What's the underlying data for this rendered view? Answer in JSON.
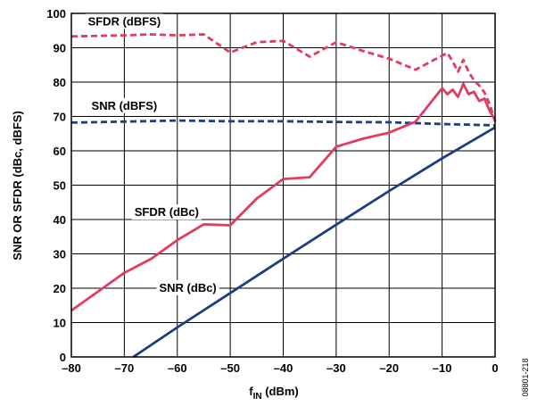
{
  "chart_data": {
    "type": "line",
    "xlabel": "f",
    "xlabel_sub": "IN",
    "xlabel_unit": " (dBm)",
    "ylabel": "SNR OR SFDR (dBc, dBFS)",
    "xlim": [
      -80,
      0
    ],
    "ylim": [
      0,
      100
    ],
    "x_ticks": [
      -80,
      -70,
      -60,
      -50,
      -40,
      -30,
      -20,
      -10,
      0
    ],
    "x_tick_labels": [
      "–80",
      "–70",
      "–60",
      "–50",
      "–40",
      "–30",
      "–20",
      "–10",
      "0"
    ],
    "y_ticks": [
      0,
      10,
      20,
      30,
      40,
      50,
      60,
      70,
      80,
      90,
      100
    ],
    "y_tick_labels": [
      "0",
      "10",
      "20",
      "30",
      "40",
      "50",
      "60",
      "70",
      "80",
      "90",
      "100"
    ],
    "grid": true,
    "figure_id": "08801-218",
    "series": [
      {
        "name": "SFDR (dBFS)",
        "color": "#e03c5f",
        "dash": true,
        "label_at": [
          -70,
          96.5
        ],
        "points": [
          [
            -80,
            93.3
          ],
          [
            -70,
            93.6
          ],
          [
            -65,
            93.9
          ],
          [
            -60,
            93.6
          ],
          [
            -55,
            93.9
          ],
          [
            -50,
            88.6
          ],
          [
            -45,
            91.6
          ],
          [
            -40,
            92.0
          ],
          [
            -35,
            87.4
          ],
          [
            -30,
            91.6
          ],
          [
            -25,
            89.1
          ],
          [
            -20,
            86.8
          ],
          [
            -15,
            83.6
          ],
          [
            -10,
            87.7
          ],
          [
            -9,
            88.5
          ],
          [
            -8,
            86.0
          ],
          [
            -7,
            83.0
          ],
          [
            -6,
            86.5
          ],
          [
            -5,
            83.0
          ],
          [
            -4,
            80.5
          ],
          [
            -3,
            79.0
          ],
          [
            -2,
            77.0
          ],
          [
            -1,
            73.5
          ],
          [
            0,
            68.5
          ]
        ]
      },
      {
        "name": "SNR (dBFS)",
        "color": "#1a3f85",
        "dash": true,
        "label_at": [
          -70,
          72.0
        ],
        "points": [
          [
            -80,
            68.2
          ],
          [
            -70,
            68.5
          ],
          [
            -60,
            68.8
          ],
          [
            -50,
            68.6
          ],
          [
            -40,
            68.6
          ],
          [
            -30,
            68.4
          ],
          [
            -20,
            68.3
          ],
          [
            -10,
            67.8
          ],
          [
            -5,
            67.6
          ],
          [
            0,
            67.4
          ]
        ]
      },
      {
        "name": "SFDR (dBc)",
        "color": "#e03c5f",
        "dash": false,
        "label_at": [
          -62,
          41.0
        ],
        "points": [
          [
            -80,
            13.5
          ],
          [
            -75,
            19.0
          ],
          [
            -70,
            24.5
          ],
          [
            -65,
            28.5
          ],
          [
            -60,
            34.0
          ],
          [
            -55,
            38.6
          ],
          [
            -50,
            38.3
          ],
          [
            -45,
            46.1
          ],
          [
            -40,
            51.8
          ],
          [
            -35,
            52.3
          ],
          [
            -30,
            61.2
          ],
          [
            -25,
            63.5
          ],
          [
            -20,
            65.3
          ],
          [
            -15,
            68.5
          ],
          [
            -10,
            78.2
          ],
          [
            -9,
            76.5
          ],
          [
            -8,
            77.8
          ],
          [
            -7,
            75.7
          ],
          [
            -6,
            79.5
          ],
          [
            -5,
            76.5
          ],
          [
            -4,
            77.2
          ],
          [
            -3,
            74.5
          ],
          [
            -2,
            75.2
          ],
          [
            -1,
            71.5
          ],
          [
            0,
            69.0
          ]
        ]
      },
      {
        "name": "SNR (dBc)",
        "color": "#1a3f85",
        "dash": false,
        "label_at": [
          -58,
          19.0
        ],
        "points": [
          [
            -68.3,
            0
          ],
          [
            -60,
            8.6
          ],
          [
            -50,
            18.6
          ],
          [
            -40,
            28.6
          ],
          [
            -30,
            38.5
          ],
          [
            -20,
            48.3
          ],
          [
            -10,
            57.8
          ],
          [
            0,
            66.8
          ]
        ]
      }
    ]
  }
}
